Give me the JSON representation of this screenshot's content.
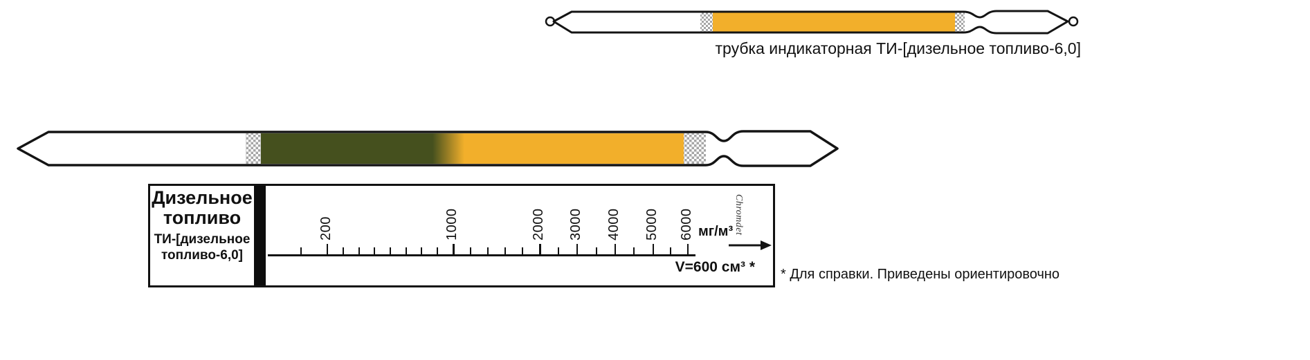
{
  "colors": {
    "tube-yellow": "#F2AF2B",
    "tube-green": "#45501E",
    "wad-gray": "#A6A6A6",
    "ink": "#141414"
  },
  "top_tube": {
    "caption": "трубка индикаторная ТИ-[дизельное топливо-6,0]"
  },
  "scale_card": {
    "product_line1": "Дизельное",
    "product_line2": "топливо",
    "model_line1": "ТИ-[дизельное",
    "model_line2": "топливо-6,0]",
    "unit": "мг/м³",
    "volume": "V=600 см³ *",
    "watermark": "Chromdet",
    "ticks": [
      {
        "value": 100,
        "pos": 7.8,
        "label": ""
      },
      {
        "value": 200,
        "pos": 13.9,
        "label": "200"
      },
      {
        "value": 300,
        "pos": 17.6,
        "label": ""
      },
      {
        "value": 400,
        "pos": 21.4,
        "label": ""
      },
      {
        "value": 500,
        "pos": 24.9,
        "label": ""
      },
      {
        "value": 600,
        "pos": 28.6,
        "label": ""
      },
      {
        "value": 700,
        "pos": 32.4,
        "label": ""
      },
      {
        "value": 800,
        "pos": 35.9,
        "label": ""
      },
      {
        "value": 900,
        "pos": 39.6,
        "label": ""
      },
      {
        "value": 1000,
        "pos": 43.4,
        "label": "1000"
      },
      {
        "value": 1200,
        "pos": 47.4,
        "label": ""
      },
      {
        "value": 1400,
        "pos": 51.5,
        "label": ""
      },
      {
        "value": 1600,
        "pos": 55.5,
        "label": ""
      },
      {
        "value": 1800,
        "pos": 59.5,
        "label": ""
      },
      {
        "value": 2000,
        "pos": 63.6,
        "label": "2000"
      },
      {
        "value": 2500,
        "pos": 68.0,
        "label": ""
      },
      {
        "value": 3000,
        "pos": 72.3,
        "label": "3000"
      },
      {
        "value": 3500,
        "pos": 76.9,
        "label": ""
      },
      {
        "value": 4000,
        "pos": 81.2,
        "label": "4000"
      },
      {
        "value": 4500,
        "pos": 85.6,
        "label": ""
      },
      {
        "value": 5000,
        "pos": 90.1,
        "label": "5000"
      },
      {
        "value": 5500,
        "pos": 94.2,
        "label": ""
      },
      {
        "value": 6000,
        "pos": 98.2,
        "label": "6000"
      }
    ]
  },
  "footnote": {
    "text": "* Для справки. Приведены ориентировочно"
  }
}
